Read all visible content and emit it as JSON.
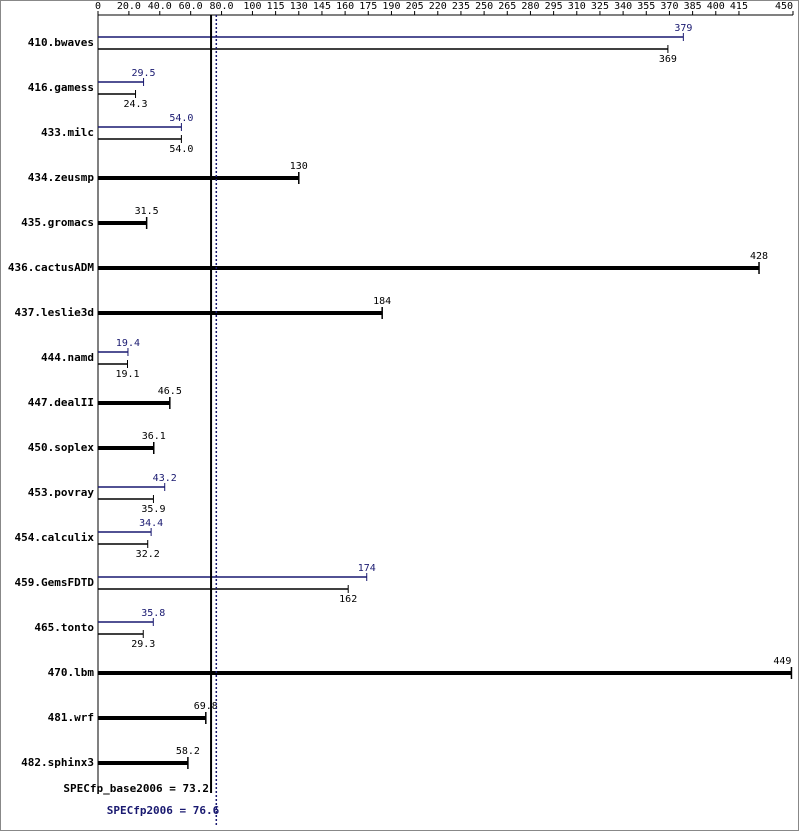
{
  "chart_data": {
    "type": "bar",
    "categories": [
      "410.bwaves",
      "416.gamess",
      "433.milc",
      "434.zeusmp",
      "435.gromacs",
      "436.cactusADM",
      "437.leslie3d",
      "444.namd",
      "447.dealII",
      "450.soplex",
      "453.povray",
      "454.calculix",
      "459.GemsFDTD",
      "465.tonto",
      "470.lbm",
      "481.wrf",
      "482.sphinx3"
    ],
    "series": [
      {
        "color": "#000000",
        "values": [
          369,
          24.3,
          54.0,
          130,
          31.5,
          428,
          184,
          19.1,
          46.5,
          36.1,
          35.9,
          32.2,
          162,
          29.3,
          449,
          69.8,
          58.2
        ],
        "value_labels": [
          "369",
          "24.3",
          "54.0",
          "130",
          "31.5",
          "428",
          "184",
          "19.1",
          "46.5",
          "36.1",
          "35.9",
          "32.2",
          "162",
          "29.3",
          "449",
          "69.8",
          "58.2"
        ]
      },
      {
        "color": "#191970",
        "values": [
          379,
          29.5,
          54.0,
          null,
          null,
          null,
          null,
          19.4,
          null,
          null,
          43.2,
          34.4,
          174,
          35.8,
          null,
          null,
          null
        ],
        "value_labels": [
          "379",
          "29.5",
          "54.0",
          null,
          null,
          null,
          null,
          "19.4",
          null,
          null,
          "43.2",
          "34.4",
          "174",
          "35.8",
          null,
          null,
          null
        ]
      }
    ],
    "xlim": [
      0,
      450
    ],
    "xticks": [
      0,
      {
        "value": 20,
        "label": "20.0"
      },
      {
        "value": 40,
        "label": "40.0"
      },
      {
        "value": 60,
        "label": "60.0"
      },
      {
        "value": 80,
        "label": "80.0"
      },
      100,
      115,
      130,
      145,
      160,
      175,
      190,
      205,
      220,
      235,
      250,
      265,
      280,
      295,
      310,
      325,
      340,
      355,
      370,
      385,
      400,
      415,
      450
    ],
    "reference_lines": [
      {
        "label": "SPECfp_base2006 = 73.2",
        "value": 73.2,
        "color": "#000000"
      },
      {
        "label": "SPECfp2006 = 76.6",
        "value": 76.6,
        "color": "#191970"
      }
    ]
  }
}
